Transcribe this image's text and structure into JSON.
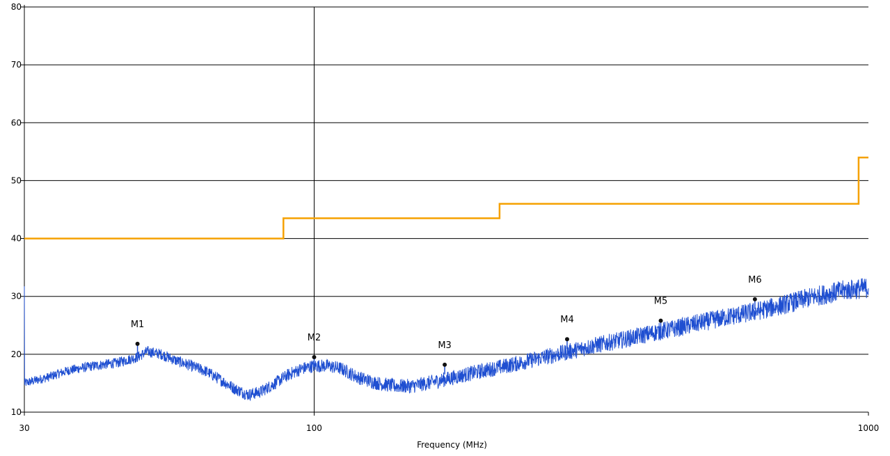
{
  "chart_data": {
    "type": "line",
    "title": "",
    "xlabel": "Frequency (MHz)",
    "ylabel": "",
    "x_scale": "log",
    "xlim": [
      30,
      1000
    ],
    "ylim": [
      10,
      80
    ],
    "x_ticks": [
      {
        "value": 30,
        "label": "30"
      },
      {
        "value": 100,
        "label": "100"
      },
      {
        "value": 1000,
        "label": "1000"
      }
    ],
    "y_ticks": [
      {
        "value": 10,
        "label": "10"
      },
      {
        "value": 20,
        "label": "20"
      },
      {
        "value": 30,
        "label": "30"
      },
      {
        "value": 40,
        "label": "40"
      },
      {
        "value": 50,
        "label": "50"
      },
      {
        "value": 60,
        "label": "60"
      },
      {
        "value": 70,
        "label": "70"
      },
      {
        "value": 80,
        "label": "80"
      }
    ],
    "grid": {
      "horizontal": true,
      "vertical_at": [
        100
      ]
    },
    "colors": {
      "measurement": "#1f4fd1",
      "limit": "#f5a100",
      "grid": "#000000"
    },
    "series": [
      {
        "key": "limit",
        "style": "step",
        "points": [
          [
            30,
            40.0
          ],
          [
            88,
            40.0
          ],
          [
            88,
            43.5
          ],
          [
            216,
            43.5
          ],
          [
            216,
            46.0
          ],
          [
            960,
            46.0
          ],
          [
            960,
            54.0
          ],
          [
            1000,
            54.0
          ]
        ]
      },
      {
        "key": "measurement",
        "style": "noisy-line",
        "points": [
          [
            30,
            15.0
          ],
          [
            33,
            16.0
          ],
          [
            36,
            17.2
          ],
          [
            40,
            18.0
          ],
          [
            44,
            18.5
          ],
          [
            48,
            19.5
          ],
          [
            50,
            20.5
          ],
          [
            53,
            20.0
          ],
          [
            56,
            19.0
          ],
          [
            60,
            18.0
          ],
          [
            64,
            17.0
          ],
          [
            68,
            15.5
          ],
          [
            72,
            14.0
          ],
          [
            76,
            13.0
          ],
          [
            80,
            13.5
          ],
          [
            85,
            15.0
          ],
          [
            90,
            16.5
          ],
          [
            95,
            17.5
          ],
          [
            100,
            18.0
          ],
          [
            106,
            18.0
          ],
          [
            112,
            17.5
          ],
          [
            120,
            16.0
          ],
          [
            130,
            15.0
          ],
          [
            140,
            14.5
          ],
          [
            150,
            14.5
          ],
          [
            160,
            15.0
          ],
          [
            175,
            15.8
          ],
          [
            190,
            16.6
          ],
          [
            210,
            17.5
          ],
          [
            230,
            18.3
          ],
          [
            260,
            19.5
          ],
          [
            290,
            20.5
          ],
          [
            320,
            21.5
          ],
          [
            360,
            22.5
          ],
          [
            400,
            23.5
          ],
          [
            450,
            24.5
          ],
          [
            500,
            25.5
          ],
          [
            560,
            26.5
          ],
          [
            620,
            27.3
          ],
          [
            700,
            28.5
          ],
          [
            800,
            30.0
          ],
          [
            900,
            31.0
          ],
          [
            1000,
            31.5
          ]
        ],
        "noise_amplitude": 1.3
      }
    ],
    "markers": [
      {
        "label": "M1",
        "x": 48,
        "y": 21.8
      },
      {
        "label": "M2",
        "x": 100,
        "y": 19.5
      },
      {
        "label": "M3",
        "x": 172,
        "y": 18.2
      },
      {
        "label": "M4",
        "x": 286,
        "y": 22.6
      },
      {
        "label": "M5",
        "x": 422,
        "y": 25.8
      },
      {
        "label": "M6",
        "x": 624,
        "y": 29.5
      }
    ]
  }
}
